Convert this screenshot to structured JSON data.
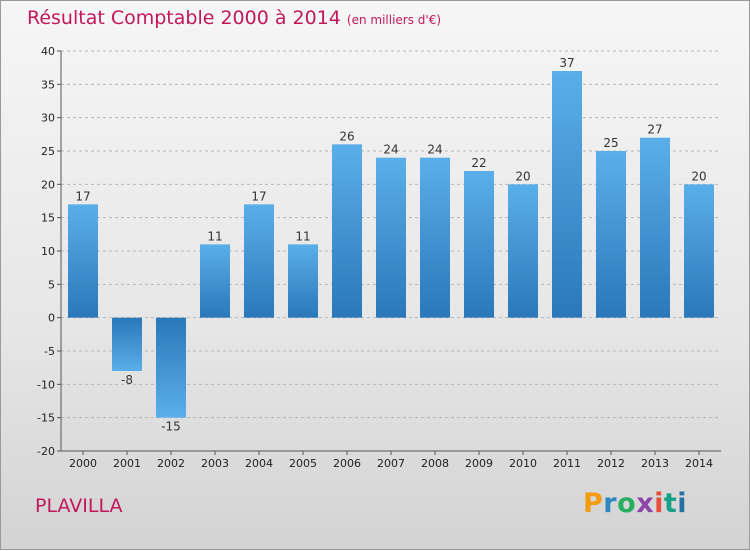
{
  "header": {
    "title": "Résultat Comptable 2000 à 2014",
    "subtitle": "(en milliers d'€)"
  },
  "footer": {
    "place": "PLAVILLA",
    "logo": "Proxiti"
  },
  "colors": {
    "title": "#c2185b",
    "bar_light": "#5aafea",
    "bar_dark": "#2a78b8",
    "logo": [
      "#f39c12",
      "#2e86c1",
      "#27ae60",
      "#8e44ad",
      "#e74c3c",
      "#16a085",
      "#2471a3"
    ]
  },
  "chart_data": {
    "type": "bar",
    "title": "Résultat Comptable 2000 à 2014",
    "subtitle": "(en milliers d'€)",
    "xlabel": "",
    "ylabel": "",
    "categories": [
      "2000",
      "2001",
      "2002",
      "2003",
      "2004",
      "2005",
      "2006",
      "2007",
      "2008",
      "2009",
      "2010",
      "2011",
      "2012",
      "2013",
      "2014"
    ],
    "values": [
      17,
      -8,
      -15,
      11,
      17,
      11,
      26,
      24,
      24,
      22,
      20,
      37,
      25,
      27,
      20
    ],
    "ylim": [
      -20,
      40
    ],
    "yticks": [
      -20,
      -15,
      -10,
      -5,
      0,
      5,
      10,
      15,
      20,
      25,
      30,
      35,
      40
    ],
    "grid": true,
    "legend": "none"
  }
}
